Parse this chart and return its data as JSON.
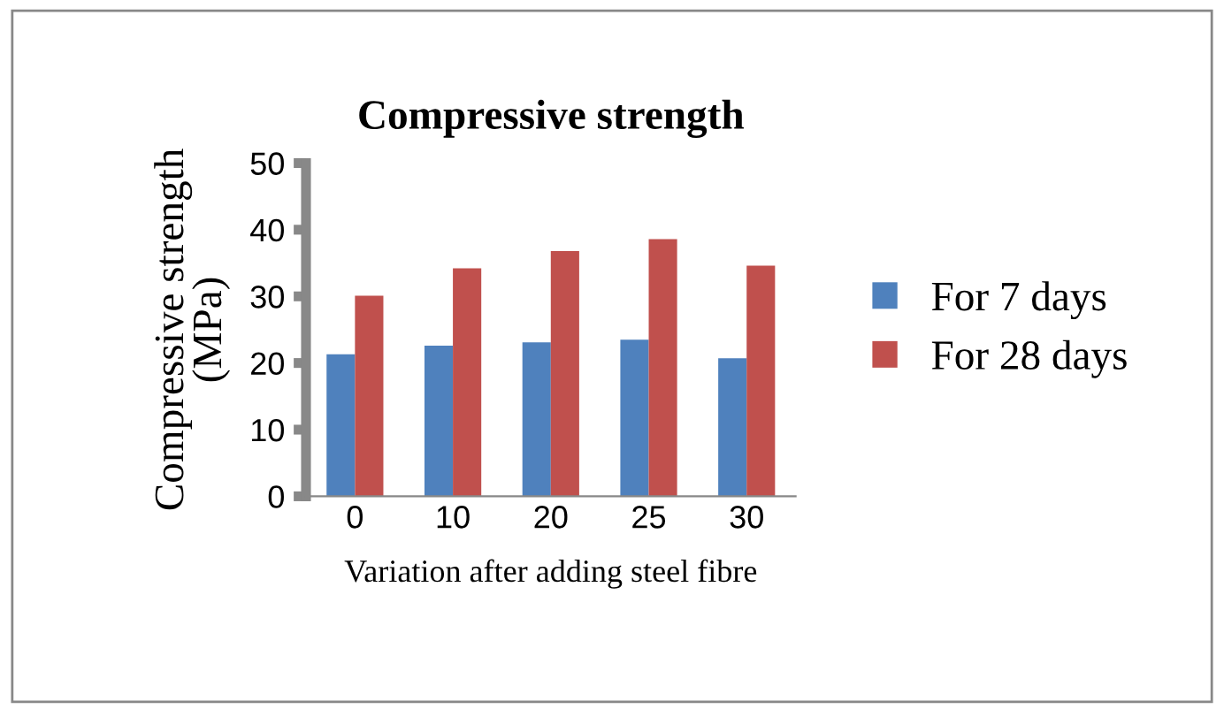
{
  "chart_data": {
    "type": "bar",
    "title": "Compressive strength",
    "xlabel": "Variation after adding steel fibre",
    "ylabel": "Compressive strength\n(MPa)",
    "categories": [
      "0",
      "10",
      "20",
      "25",
      "30"
    ],
    "series": [
      {
        "name": "For 7 days",
        "color": "#4f81bd",
        "values": [
          21.3,
          22.6,
          23.1,
          23.5,
          20.7
        ]
      },
      {
        "name": "For 28 days",
        "color": "#c0504d",
        "values": [
          30.1,
          34.2,
          36.8,
          38.6,
          34.6
        ]
      }
    ],
    "ylim": [
      0,
      50
    ],
    "yticks": [
      0,
      10,
      20,
      30,
      40,
      50
    ],
    "grid": false,
    "legend": "right"
  }
}
